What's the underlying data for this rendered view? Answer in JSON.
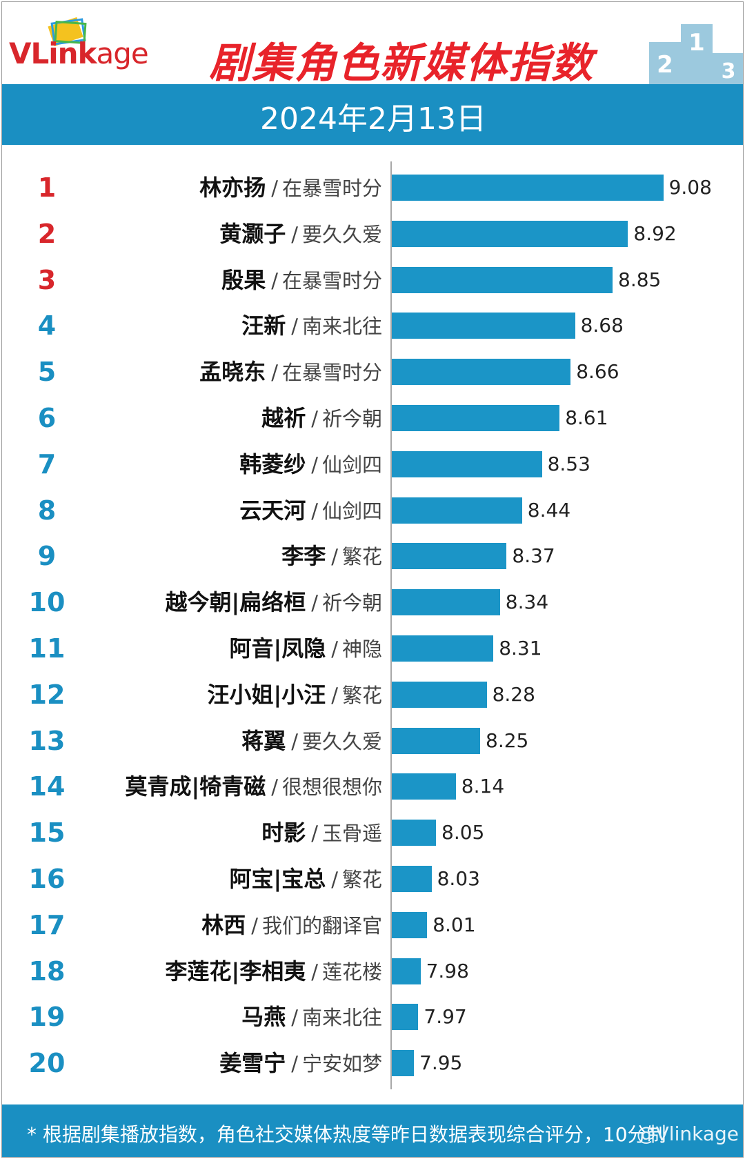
{
  "header": {
    "logo_main": "VLink",
    "logo_rest": "age",
    "title": "剧集角色新媒体指数",
    "date": "2024年2月13日",
    "podium_numbers": [
      "2",
      "1",
      "3"
    ]
  },
  "colors": {
    "accent": "#1a8fc2",
    "bar": "#1b95c7",
    "top_rank": "#d8262b",
    "title": "#e8232a"
  },
  "chart_data": {
    "type": "bar",
    "orientation": "horizontal",
    "categories": [
      {
        "rank": "1",
        "role": "林亦扬",
        "show": "在暴雪时分"
      },
      {
        "rank": "2",
        "role": "黄灏子",
        "show": "要久久爱"
      },
      {
        "rank": "3",
        "role": "殷果",
        "show": "在暴雪时分"
      },
      {
        "rank": "4",
        "role": "汪新",
        "show": "南来北往"
      },
      {
        "rank": "5",
        "role": "孟晓东",
        "show": "在暴雪时分"
      },
      {
        "rank": "6",
        "role": "越祈",
        "show": "祈今朝"
      },
      {
        "rank": "7",
        "role": "韩菱纱",
        "show": "仙剑四"
      },
      {
        "rank": "8",
        "role": "云天河",
        "show": "仙剑四"
      },
      {
        "rank": "9",
        "role": "李李",
        "show": "繁花"
      },
      {
        "rank": "10",
        "role": "越今朝|扁络桓",
        "show": "祈今朝"
      },
      {
        "rank": "11",
        "role": "阿音|凤隐",
        "show": "神隐"
      },
      {
        "rank": "12",
        "role": "汪小姐|小汪",
        "show": "繁花"
      },
      {
        "rank": "13",
        "role": "蒋翼",
        "show": "要久久爱"
      },
      {
        "rank": "14",
        "role": "莫青成|犄青磁",
        "show": "很想很想你"
      },
      {
        "rank": "15",
        "role": "时影",
        "show": "玉骨遥"
      },
      {
        "rank": "16",
        "role": "阿宝|宝总",
        "show": "繁花"
      },
      {
        "rank": "17",
        "role": "林西",
        "show": "我们的翻译官"
      },
      {
        "rank": "18",
        "role": "李莲花|李相夷",
        "show": "莲花楼"
      },
      {
        "rank": "19",
        "role": "马燕",
        "show": "南来北往"
      },
      {
        "rank": "20",
        "role": "姜雪宁",
        "show": "宁安如梦"
      }
    ],
    "values": [
      "9.08",
      "8.92",
      "8.85",
      "8.68",
      "8.66",
      "8.61",
      "8.53",
      "8.44",
      "8.37",
      "8.34",
      "8.31",
      "8.28",
      "8.25",
      "8.14",
      "8.05",
      "8.03",
      "8.01",
      "7.98",
      "7.97",
      "7.95"
    ],
    "separator": "/",
    "xlim": [
      7.85,
      9.1
    ],
    "grid": false,
    "legend": "none"
  },
  "footer": {
    "note": "* 根据剧集播放指数，角色社交媒体热度等昨日数据表现综合评分，10分制",
    "watermark": "@Vlinkage"
  }
}
